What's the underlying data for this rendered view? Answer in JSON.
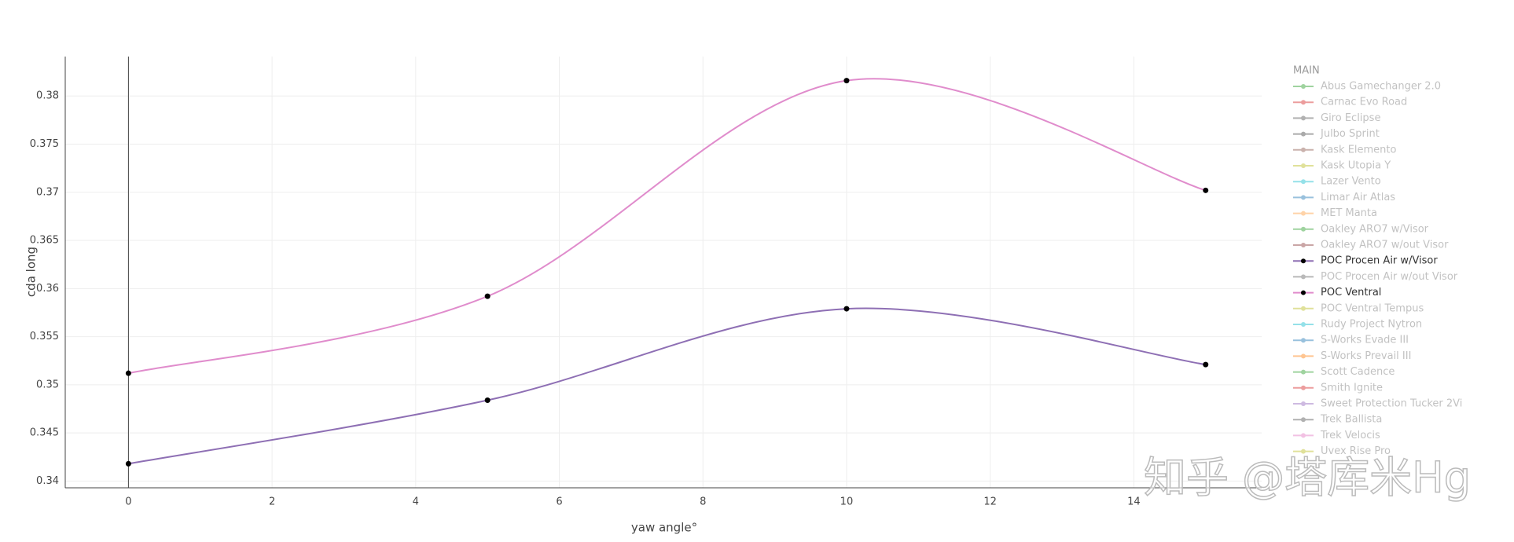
{
  "chart_data": {
    "type": "line",
    "x_label": "yaw angle°",
    "y_label": "cda long",
    "x": [
      0,
      5,
      10,
      15
    ],
    "xlim": [
      -0.88,
      15.78
    ],
    "xticks": [
      0,
      2,
      4,
      6,
      8,
      10,
      12,
      14
    ],
    "ylim": [
      0.3393,
      0.3841
    ],
    "yticks": [
      0.34,
      0.345,
      0.35,
      0.355,
      0.36,
      0.365,
      0.37,
      0.375,
      0.38
    ],
    "grid": true,
    "spline": true,
    "legend_title": "MAIN",
    "legend_position": "right",
    "watermark": "知乎 @塔库米Hg",
    "series": [
      {
        "name": "Abus Gamechanger 2.0",
        "color": "#2ca02c",
        "visible": false,
        "values": [
          null,
          null,
          null,
          null
        ]
      },
      {
        "name": "Carnac Evo Road",
        "color": "#d62728",
        "visible": false,
        "values": [
          null,
          null,
          null,
          null
        ]
      },
      {
        "name": "Giro Eclipse",
        "color": "#555555",
        "visible": false,
        "values": [
          null,
          null,
          null,
          null
        ]
      },
      {
        "name": "Julbo Sprint",
        "color": "#444444",
        "visible": false,
        "values": [
          null,
          null,
          null,
          null
        ]
      },
      {
        "name": "Kask Elemento",
        "color": "#8c564b",
        "visible": false,
        "values": [
          null,
          null,
          null,
          null
        ]
      },
      {
        "name": "Kask Utopia Y",
        "color": "#bcbd22",
        "visible": false,
        "values": [
          null,
          null,
          null,
          null
        ]
      },
      {
        "name": "Lazer Vento",
        "color": "#17becf",
        "visible": false,
        "values": [
          null,
          null,
          null,
          null
        ]
      },
      {
        "name": "Limar Air Atlas",
        "color": "#1f77b4",
        "visible": false,
        "values": [
          null,
          null,
          null,
          null
        ]
      },
      {
        "name": "MET Manta",
        "color": "#ff9f40",
        "visible": false,
        "values": [
          null,
          null,
          null,
          null
        ]
      },
      {
        "name": "Oakley ARO7 w/Visor",
        "color": "#2ca02c",
        "visible": false,
        "values": [
          null,
          null,
          null,
          null
        ]
      },
      {
        "name": "Oakley ARO7 w/out Visor",
        "color": "#8c3b3b",
        "visible": false,
        "values": [
          null,
          null,
          null,
          null
        ]
      },
      {
        "name": "POC Procen Air w/Visor",
        "color": "#8e6fb4",
        "visible": true,
        "values": [
          0.3418,
          0.3484,
          0.3579,
          0.3521
        ]
      },
      {
        "name": "POC Procen Air w/out Visor",
        "color": "#666666",
        "visible": false,
        "values": [
          null,
          null,
          null,
          null
        ]
      },
      {
        "name": "POC Ventral",
        "color": "#e08ccc",
        "visible": true,
        "values": [
          0.3512,
          0.3592,
          0.3816,
          0.3702
        ]
      },
      {
        "name": "POC Ventral Tempus",
        "color": "#bcbd22",
        "visible": false,
        "values": [
          null,
          null,
          null,
          null
        ]
      },
      {
        "name": "Rudy Project Nytron",
        "color": "#17becf",
        "visible": false,
        "values": [
          null,
          null,
          null,
          null
        ]
      },
      {
        "name": "S-Works Evade III",
        "color": "#1f77b4",
        "visible": false,
        "values": [
          null,
          null,
          null,
          null
        ]
      },
      {
        "name": "S-Works Prevail III",
        "color": "#ff7f0e",
        "visible": false,
        "values": [
          null,
          null,
          null,
          null
        ]
      },
      {
        "name": "Scott Cadence",
        "color": "#2ca02c",
        "visible": false,
        "values": [
          null,
          null,
          null,
          null
        ]
      },
      {
        "name": "Smith Ignite",
        "color": "#d62728",
        "visible": false,
        "values": [
          null,
          null,
          null,
          null
        ]
      },
      {
        "name": "Sweet Protection Tucker 2Vi",
        "color": "#9467bd",
        "visible": false,
        "values": [
          null,
          null,
          null,
          null
        ]
      },
      {
        "name": "Trek Ballista",
        "color": "#555555",
        "visible": false,
        "values": [
          null,
          null,
          null,
          null
        ]
      },
      {
        "name": "Trek Velocis",
        "color": "#e377c2",
        "visible": false,
        "values": [
          null,
          null,
          null,
          null
        ]
      },
      {
        "name": "Uvex Rise Pro",
        "color": "#bcbd22",
        "visible": false,
        "values": [
          null,
          null,
          null,
          null
        ]
      }
    ]
  }
}
